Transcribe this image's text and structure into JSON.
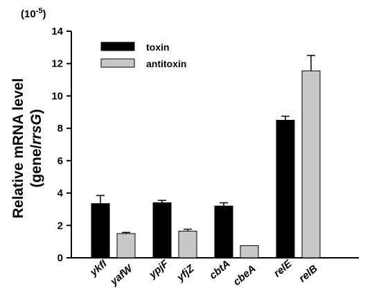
{
  "chart_data": {
    "type": "bar",
    "scale_prefix": "(10",
    "scale_exponent": "-5",
    "scale_suffix": ")",
    "ylabel_line1": "Relative mRNA level",
    "ylabel_line2_pre": "(gene/",
    "ylabel_line2_italic": "rrsG",
    "ylabel_line2_post": ")",
    "ylim": [
      0,
      14
    ],
    "yticks": [
      "0",
      "2",
      "4",
      "6",
      "8",
      "10",
      "12",
      "14"
    ],
    "grid": false,
    "legend_position": "top-left",
    "groups": [
      {
        "toxin_label": "ykfI",
        "antitoxin_label": "yafW"
      },
      {
        "toxin_label": "ypjF",
        "antitoxin_label": "yfjZ"
      },
      {
        "toxin_label": "cbtA",
        "antitoxin_label": "cbeA"
      },
      {
        "toxin_label": "relE",
        "antitoxin_label": "relB"
      }
    ],
    "series": [
      {
        "name": "toxin",
        "color": "#000000",
        "values": [
          3.35,
          3.4,
          3.2,
          8.5
        ],
        "errors": [
          0.5,
          0.15,
          0.2,
          0.25
        ]
      },
      {
        "name": "antitoxin",
        "color": "#c8c8c8",
        "values": [
          1.5,
          1.65,
          0.75,
          11.55
        ],
        "errors": [
          0.07,
          0.12,
          0.0,
          0.95
        ]
      }
    ]
  }
}
